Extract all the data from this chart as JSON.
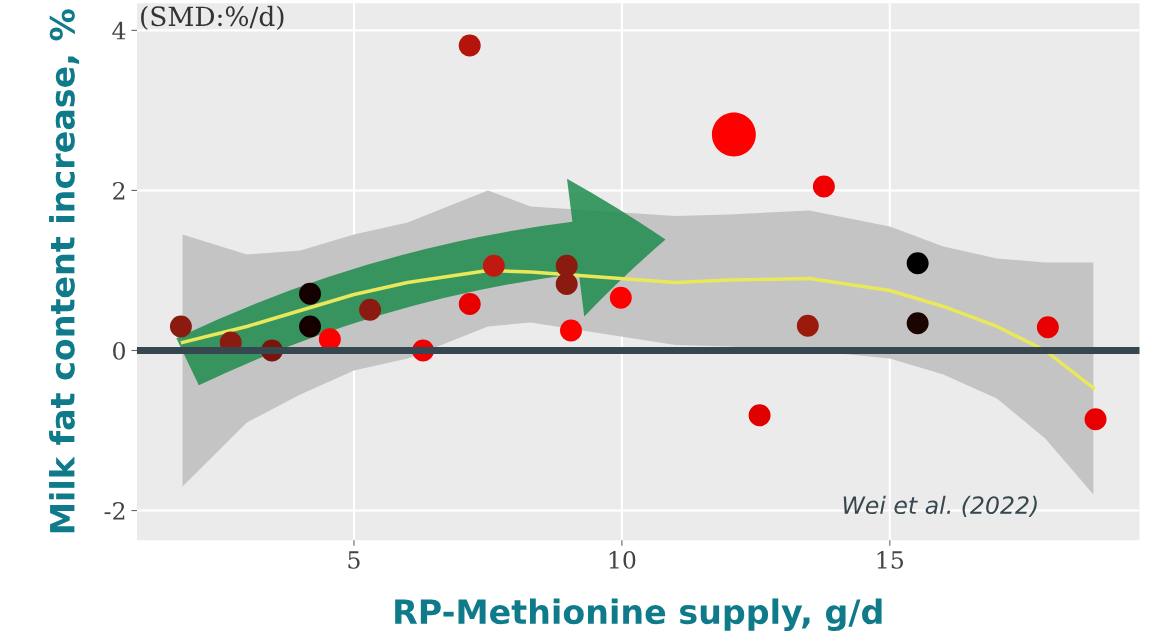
{
  "chart_data": {
    "type": "bubble",
    "xlabel": "RP-Methionine supply, g/d",
    "ylabel": "Milk fat content increase, %",
    "annotations": [
      "(SMD:%/d)",
      "Wei et al. (2022)"
    ],
    "xlim": [
      0.95,
      19.66
    ],
    "ylim": [
      -2.37,
      4.34
    ],
    "xticks": [
      5,
      10,
      15
    ],
    "yticks": [
      -2,
      0,
      2,
      4
    ],
    "grid": true,
    "legend": false,
    "ref_lines": [
      {
        "axis": "y",
        "value": 0,
        "label": null,
        "color": "#37474f"
      }
    ],
    "series": [
      {
        "type": "line",
        "color": "#e8e85a",
        "x": [
          1.8,
          3,
          4,
          5,
          6,
          7.5,
          8.3,
          11,
          12,
          13.5,
          15,
          16,
          17,
          17.9,
          18.8
        ],
        "values": [
          0.1,
          0.3,
          0.5,
          0.7,
          0.85,
          1.0,
          0.98,
          0.85,
          0.88,
          0.9,
          0.75,
          0.55,
          0.3,
          0.0,
          -0.47
        ],
        "lower": [
          -1.7,
          -0.9,
          -0.55,
          -0.25,
          -0.1,
          0.3,
          0.35,
          0.07,
          0.05,
          0.0,
          -0.1,
          -0.3,
          -0.6,
          -1.1,
          -1.8
        ],
        "upper": [
          1.45,
          1.2,
          1.25,
          1.45,
          1.6,
          2.0,
          1.8,
          1.68,
          1.7,
          1.75,
          1.55,
          1.3,
          1.15,
          1.1,
          1.1
        ]
      },
      {
        "x": [
          1.77,
          2.7,
          3.47,
          4.18,
          4.18,
          4.55,
          5.3,
          6.29,
          7.16,
          7.16,
          7.61,
          8.97,
          8.97,
          9.05,
          9.98,
          12.09,
          12.57,
          13.47,
          13.77,
          15.52,
          15.52,
          17.95,
          18.84
        ],
        "values": [
          0.3,
          0.1,
          0.0,
          0.71,
          0.3,
          0.14,
          0.51,
          0.0,
          3.81,
          0.58,
          1.06,
          1.06,
          0.83,
          0.25,
          0.66,
          2.7,
          -0.81,
          0.31,
          2.05,
          1.09,
          0.34,
          0.29,
          -0.86
        ],
        "sizes": [
          0.25,
          0.25,
          0.25,
          0.25,
          0.25,
          0.25,
          0.25,
          0.25,
          0.25,
          0.25,
          0.25,
          0.25,
          0.25,
          0.25,
          0.25,
          1,
          0.25,
          0.25,
          0.25,
          0.25,
          0.25,
          0.25,
          0.25
        ],
        "colors": [
          "#8b1a10",
          "#8b1a10",
          "#7a150d",
          "#150000",
          "#150000",
          "#ff0000",
          "#8b1a10",
          "#f00000",
          "#b5140a",
          "#e80000",
          "#c01a10",
          "#8b1a10",
          "#8b1a10",
          "#ff0000",
          "#ff0000",
          "#ff0000",
          "#e00000",
          "#9a1a0c",
          "#f00000",
          "#000000",
          "#1a0500",
          "#e80000",
          "#e80000"
        ]
      }
    ]
  }
}
